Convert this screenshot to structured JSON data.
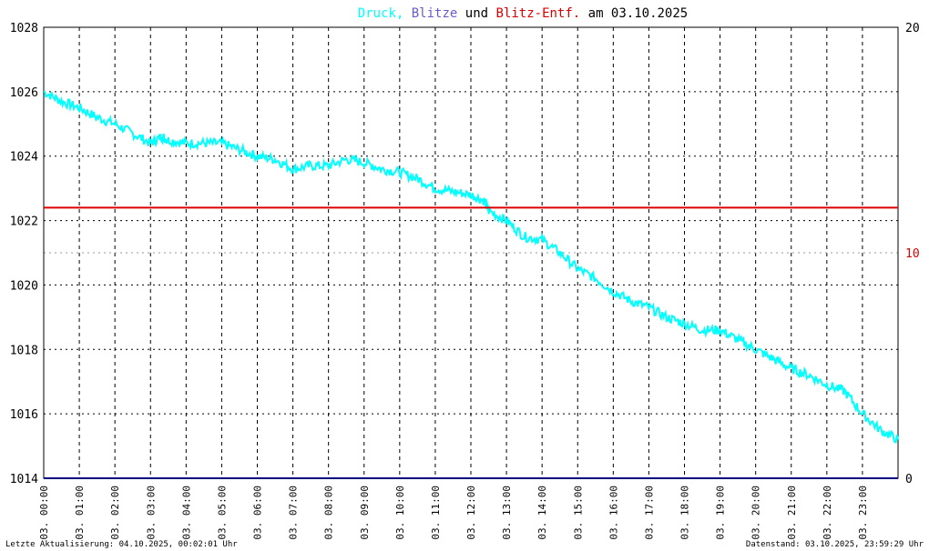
{
  "chart_data": {
    "type": "line",
    "title_parts": [
      {
        "text": "Druck,",
        "color": "#00ffff"
      },
      {
        "text": "Blitze",
        "color": "#6a5acd"
      },
      {
        "text": "und",
        "color": "#000000"
      },
      {
        "text": "Blitz-Entf.",
        "color": "#dd0000"
      },
      {
        "text": "am 03.10.2025",
        "color": "#000000"
      }
    ],
    "y_left": {
      "min": 1014,
      "max": 1028,
      "ticks": [
        "1014",
        "1016",
        "1018",
        "1020",
        "1022",
        "1024",
        "1026",
        "1028"
      ]
    },
    "y_right": {
      "min": 0,
      "max": 20,
      "ticks": [
        {
          "value": 0,
          "label": "0",
          "color": "#000000"
        },
        {
          "value": 10,
          "label": "10",
          "color": "#dd0000"
        },
        {
          "value": 20,
          "label": "20",
          "color": "#000000"
        }
      ]
    },
    "x_range": [
      0,
      24
    ],
    "x_ticks": [
      "03. 00:00",
      "03. 01:00",
      "03. 02:00",
      "03. 03:00",
      "03. 04:00",
      "03. 05:00",
      "03. 06:00",
      "03. 07:00",
      "03. 08:00",
      "03. 09:00",
      "03. 10:00",
      "03. 11:00",
      "03. 12:00",
      "03. 13:00",
      "03. 14:00",
      "03. 15:00",
      "03. 16:00",
      "03. 17:00",
      "03. 18:00",
      "03. 19:00",
      "03. 20:00",
      "03. 21:00",
      "03. 22:00",
      "03. 23:00"
    ],
    "grid": true,
    "series": [
      {
        "name": "Druck",
        "axis": "left",
        "color": "#00ffff",
        "x": [
          0,
          0.5,
          1,
          1.5,
          2,
          2.5,
          3,
          3.3,
          3.5,
          4,
          4.5,
          5,
          5.5,
          6,
          6.5,
          7,
          7.5,
          8,
          8.5,
          9,
          9.5,
          10,
          10.5,
          11,
          11.5,
          12,
          12.4,
          12.5,
          13,
          13.5,
          14,
          14.5,
          15,
          15.5,
          16,
          16.5,
          17,
          17.5,
          18,
          18.5,
          19,
          19.5,
          20,
          20.5,
          21,
          21.5,
          22,
          22.5,
          23,
          23.5,
          24
        ],
        "y": [
          1026.0,
          1025.7,
          1025.5,
          1025.2,
          1025.0,
          1024.7,
          1024.4,
          1024.6,
          1024.5,
          1024.4,
          1024.4,
          1024.4,
          1024.2,
          1024.0,
          1023.9,
          1023.6,
          1023.7,
          1023.7,
          1023.9,
          1023.8,
          1023.6,
          1023.5,
          1023.3,
          1023.0,
          1022.9,
          1022.8,
          1022.6,
          1022.3,
          1022.0,
          1021.5,
          1021.4,
          1021.0,
          1020.5,
          1020.2,
          1019.8,
          1019.5,
          1019.3,
          1019.0,
          1018.8,
          1018.6,
          1018.6,
          1018.3,
          1018.0,
          1017.7,
          1017.4,
          1017.2,
          1016.9,
          1016.7,
          1016.0,
          1015.5,
          1015.2
        ]
      },
      {
        "name": "Blitze",
        "axis": "right",
        "color": "#000080",
        "x": [
          0,
          24
        ],
        "y": [
          0,
          0
        ]
      },
      {
        "name": "Blitz-Entf.",
        "axis": "right",
        "color": "#dd0000",
        "x": [
          0,
          24
        ],
        "y": [
          12,
          12
        ]
      }
    ]
  },
  "footer": {
    "left": "Letzte Aktualisierung: 04.10.2025, 00:02:01 Uhr",
    "right": "Datenstand: 03.10.2025, 23:59:29 Uhr"
  }
}
